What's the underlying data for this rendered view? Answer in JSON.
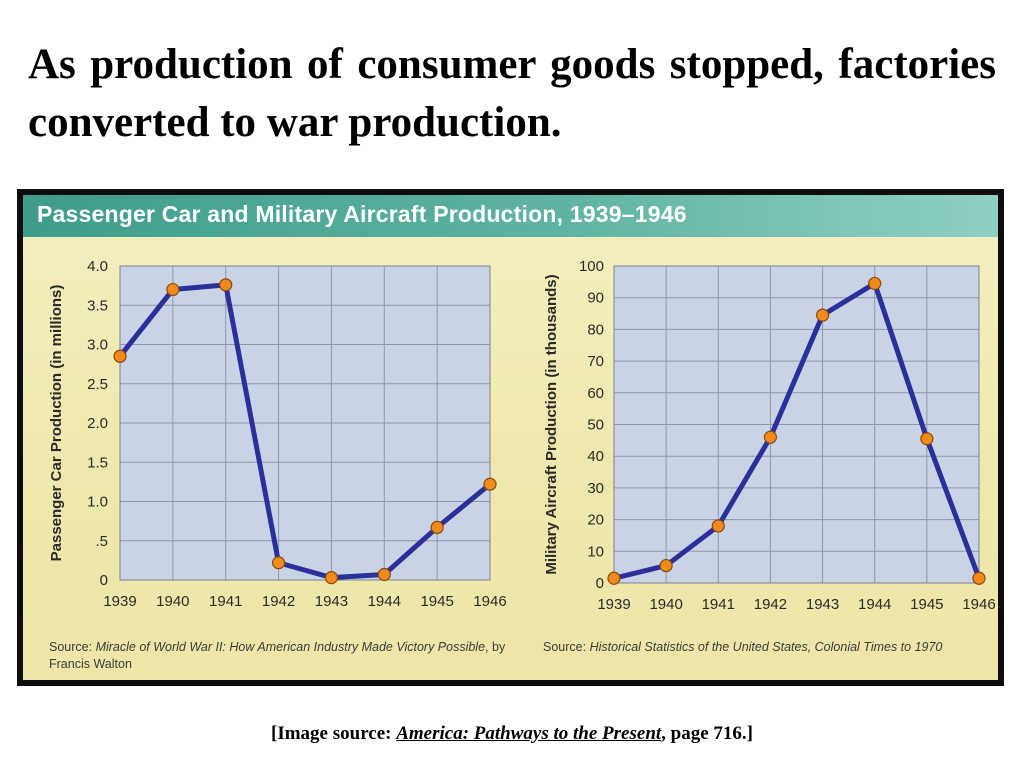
{
  "slide": {
    "title": "As production of consumer goods stopped, factories converted to war production."
  },
  "figure": {
    "title": "Passenger Car and Military Aircraft Production, 1939–1946",
    "colors": {
      "banner": "#4aa592",
      "panel": "#f1eab4",
      "plot_bg": "#c8d4e6",
      "line": "#2b2f9a",
      "marker": "#f08a1c"
    }
  },
  "chart_data": [
    {
      "type": "line",
      "x": [
        "1939",
        "1940",
        "1941",
        "1942",
        "1943",
        "1944",
        "1945",
        "1946"
      ],
      "series": [
        {
          "values": [
            2.85,
            3.7,
            3.76,
            0.22,
            0.03,
            0.07,
            0.67,
            1.22
          ]
        }
      ],
      "ylabel": "Passenger Car Production (in millions)",
      "ylim": [
        0,
        4.0
      ],
      "yticks": [
        "0",
        ".5",
        "1.0",
        "1.5",
        "2.0",
        "2.5",
        "3.0",
        "3.5",
        "4.0"
      ],
      "ytick_values": [
        0,
        0.5,
        1.0,
        1.5,
        2.0,
        2.5,
        3.0,
        3.5,
        4.0
      ],
      "grid": true,
      "source_lead": "Source: ",
      "source_text": "Miracle of World War II: How American Industry Made Victory Possible",
      "source_tail": ", by Francis Walton"
    },
    {
      "type": "line",
      "x": [
        "1939",
        "1940",
        "1941",
        "1942",
        "1943",
        "1944",
        "1945",
        "1946"
      ],
      "series": [
        {
          "values": [
            1.5,
            5.5,
            18,
            46,
            84.5,
            94.5,
            45.5,
            1.5
          ]
        }
      ],
      "ylabel": "Military Aircraft Production (in thousands)",
      "ylim": [
        0,
        100
      ],
      "yticks": [
        "0",
        "10",
        "20",
        "30",
        "40",
        "50",
        "60",
        "70",
        "80",
        "90",
        "100"
      ],
      "ytick_values": [
        0,
        10,
        20,
        30,
        40,
        50,
        60,
        70,
        80,
        90,
        100
      ],
      "grid": true,
      "source_lead": "Source: ",
      "source_text": "Historical Statistics of the United States, Colonial Times to 1970",
      "source_tail": ""
    }
  ],
  "caption": {
    "prefix": "[Image source:  ",
    "book": "America:  Pathways to the Present",
    "suffix": ", page 716.]"
  }
}
